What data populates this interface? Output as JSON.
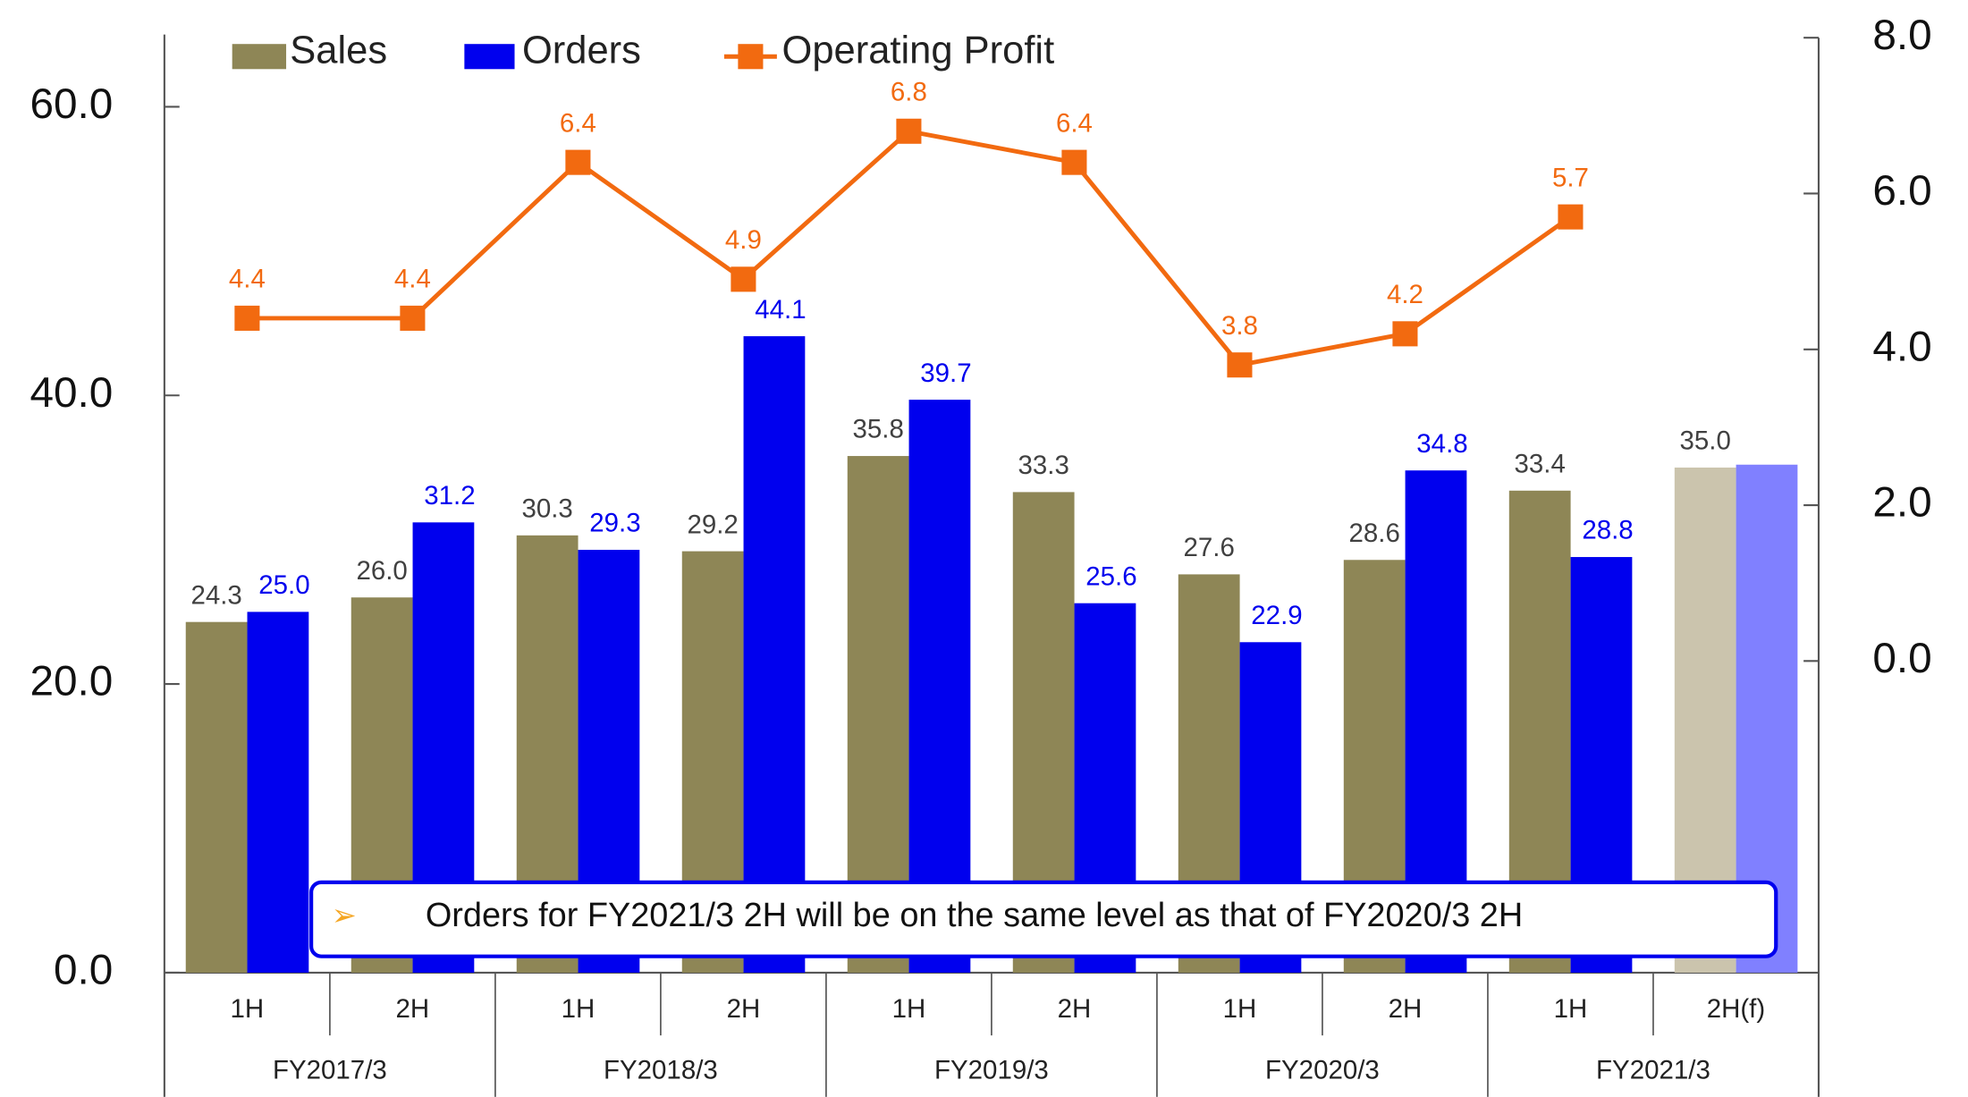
{
  "chart_data": {
    "type": "bar",
    "categories": [
      "1H",
      "2H",
      "1H",
      "2H",
      "1H",
      "2H",
      "1H",
      "2H",
      "1H",
      "2H(f)"
    ],
    "groups": [
      "FY2017/3",
      "FY2018/3",
      "FY2019/3",
      "FY2020/3",
      "FY2021/3"
    ],
    "series": [
      {
        "name": "Sales",
        "type": "bar",
        "color": "#8e8656",
        "colors": [
          "#8e8656",
          "#8e8656",
          "#8e8656",
          "#8e8656",
          "#8e8656",
          "#8e8656",
          "#8e8656",
          "#8e8656",
          "#8e8656",
          "#cbc4ad"
        ],
        "label_color": "#404040",
        "values": [
          24.3,
          26.0,
          30.3,
          29.2,
          35.8,
          33.3,
          27.6,
          28.6,
          33.4,
          35.0
        ],
        "value_labels": [
          "24.3",
          "26.0",
          "30.3",
          "29.2",
          "35.8",
          "33.3",
          "27.6",
          "28.6",
          "33.4",
          "35.0"
        ]
      },
      {
        "name": "Orders",
        "type": "bar",
        "color": "#0000ee",
        "colors": [
          "#0000ee",
          "#0000ee",
          "#0000ee",
          "#0000ee",
          "#0000ee",
          "#0000ee",
          "#0000ee",
          "#0000ee",
          "#0000ee",
          "#8080ff"
        ],
        "label_color": "#0000ee",
        "values": [
          25.0,
          31.2,
          29.3,
          44.1,
          39.7,
          25.6,
          22.9,
          34.8,
          28.8,
          35.2
        ],
        "value_labels": [
          "25.0",
          "31.2",
          "29.3",
          "44.1",
          "39.7",
          "25.6",
          "22.9",
          "34.8",
          "28.8",
          null
        ]
      },
      {
        "name": "Operating Profit",
        "type": "line",
        "axis": "y2",
        "color": "#f26a10",
        "label_color": "#f26a10",
        "values": [
          4.4,
          4.4,
          6.4,
          4.9,
          6.8,
          6.4,
          3.8,
          4.2,
          5.7,
          null
        ]
      }
    ],
    "ylim": [
      0,
      65
    ],
    "yticks": [
      {
        "value": 0,
        "label": "0.0"
      },
      {
        "value": 20,
        "label": "20.0"
      },
      {
        "value": 40,
        "label": "40.0"
      },
      {
        "value": 60,
        "label": "60.0"
      }
    ],
    "y2lim": [
      -4,
      8
    ],
    "y2ticks": [
      {
        "value": 0,
        "label": "0.0"
      },
      {
        "value": 2,
        "label": "2.0"
      },
      {
        "value": 4,
        "label": "4.0"
      },
      {
        "value": 6,
        "label": "6.0"
      },
      {
        "value": 8,
        "label": "8.0"
      }
    ],
    "legend": "top",
    "annotation": "Orders for FY2021/3 2H will be on the same level as that of FY2020/3 2H"
  }
}
